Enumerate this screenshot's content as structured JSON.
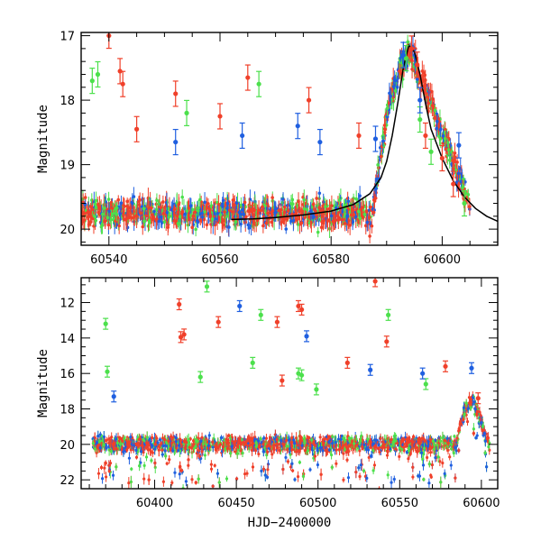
{
  "colors": {
    "red": "#f0402a",
    "blue": "#1f5fe0",
    "green": "#4ce04c",
    "model": "#000000"
  },
  "chart_data": [
    {
      "type": "scatter",
      "xlabel": "",
      "ylabel": "Magnitude",
      "xlim": [
        60535,
        60610
      ],
      "ylim": [
        20.25,
        16.95
      ],
      "y_inverted": true,
      "x_ticks": [
        60540,
        60560,
        60580,
        60600
      ],
      "x_minor_step": 5,
      "y_ticks": [
        17,
        18,
        19,
        20
      ],
      "y_minor_step": 0.2,
      "model_curve": {
        "color": "black",
        "x": [
          60562,
          60566,
          60570,
          60575,
          60580,
          60584,
          60587,
          60589,
          60590,
          60591,
          60592,
          60593,
          60594,
          60595,
          60596,
          60597,
          60598,
          60600,
          60602,
          60604,
          60606,
          60608,
          60610
        ],
        "y": [
          19.85,
          19.84,
          19.82,
          19.78,
          19.72,
          19.62,
          19.45,
          19.2,
          18.95,
          18.55,
          18.05,
          17.5,
          17.15,
          17.25,
          17.6,
          18.05,
          18.45,
          18.9,
          19.25,
          19.5,
          19.68,
          19.8,
          19.88
        ]
      },
      "series": [
        {
          "color": "red",
          "x": [
            60540,
            60542,
            60542.5,
            60545,
            60552,
            60560,
            60565,
            60576,
            60585,
            60594.5,
            60595.5,
            60597,
            60600,
            60602
          ],
          "y": [
            17.0,
            17.55,
            17.75,
            18.45,
            17.9,
            18.25,
            17.65,
            18.0,
            18.55,
            17.2,
            17.45,
            18.55,
            18.9,
            19.3
          ]
        },
        {
          "color": "green",
          "x": [
            60537,
            60538,
            60554,
            60567,
            60593.5,
            60596,
            60598,
            60604
          ],
          "y": [
            17.7,
            17.6,
            18.2,
            17.75,
            17.35,
            18.3,
            18.8,
            19.6
          ]
        },
        {
          "color": "blue",
          "x": [
            60552,
            60564,
            60574,
            60578,
            60588,
            60593,
            60596,
            60603
          ],
          "y": [
            18.65,
            18.55,
            18.4,
            18.65,
            18.6,
            17.3,
            18.0,
            18.7
          ]
        }
      ],
      "dense_band": {
        "x_range": [
          60535,
          60605
        ],
        "y_range": [
          19.2,
          20.25
        ]
      }
    },
    {
      "type": "scatter",
      "xlabel": "HJD−2400000",
      "ylabel": "Magnitude",
      "xlim": [
        60355,
        60610
      ],
      "ylim": [
        22.5,
        10.6
      ],
      "y_inverted": true,
      "x_ticks": [
        60400,
        60450,
        60500,
        60550,
        60600
      ],
      "x_minor_step": 10,
      "y_ticks": [
        12,
        14,
        16,
        18,
        20,
        22
      ],
      "y_minor_step": 0.5,
      "series": [
        {
          "color": "red",
          "x": [
            60415,
            60418,
            60416,
            60439,
            60475,
            60478,
            60488,
            60490,
            60518,
            60535,
            60542,
            60578,
            60598
          ],
          "y": [
            12.1,
            13.8,
            13.95,
            13.1,
            13.1,
            16.4,
            12.2,
            12.4,
            15.4,
            10.8,
            14.2,
            15.6,
            17.4
          ]
        },
        {
          "color": "green",
          "x": [
            60370,
            60371,
            60432,
            60428,
            60460,
            60465,
            60488,
            60490,
            60499,
            60543,
            60566
          ],
          "y": [
            13.2,
            15.9,
            11.1,
            16.2,
            15.4,
            12.7,
            16.0,
            16.1,
            16.9,
            12.7,
            16.6
          ]
        },
        {
          "color": "blue",
          "x": [
            60375,
            60452,
            60493,
            60532,
            60564,
            60594
          ],
          "y": [
            17.3,
            12.2,
            13.9,
            15.8,
            16.0,
            15.7
          ]
        }
      ],
      "dense_band": {
        "x_range": [
          60362,
          60605
        ],
        "y_range": [
          18.5,
          22.5
        ]
      }
    }
  ]
}
